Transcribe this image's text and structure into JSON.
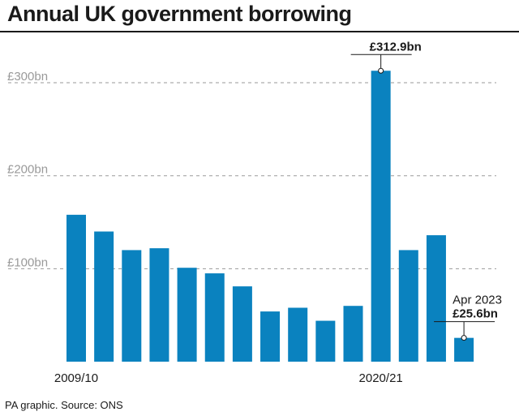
{
  "title": "Annual UK government borrowing",
  "source": "PA graphic. Source: ONS",
  "colors": {
    "bar": "#0a82bf",
    "grid": "#9a9a9a",
    "tick_label": "#9a9a9a",
    "text": "#1a1a1a"
  },
  "chart_data": {
    "type": "bar",
    "title": "Annual UK government borrowing",
    "xlabel": "",
    "ylabel": "",
    "ylim": [
      0,
      340
    ],
    "yticks": [
      {
        "value": 100,
        "label": "£100bn"
      },
      {
        "value": 200,
        "label": "£200bn"
      },
      {
        "value": 300,
        "label": "£300bn"
      }
    ],
    "grid": "horizontal dashed",
    "x_tick_labels": [
      {
        "index": 0,
        "label": "2009/10"
      },
      {
        "index": 11,
        "label": "2020/21"
      }
    ],
    "values": [
      158,
      140,
      120,
      122,
      101,
      95,
      81,
      54,
      58,
      44,
      60,
      312.9,
      120,
      136,
      25.6
    ],
    "annotations": [
      {
        "index": 11,
        "lines": [
          "£312.9bn"
        ],
        "bold": [
          true
        ]
      },
      {
        "index": 14,
        "lines": [
          "Apr 2023",
          "£25.6bn"
        ],
        "bold": [
          false,
          true
        ]
      }
    ]
  }
}
